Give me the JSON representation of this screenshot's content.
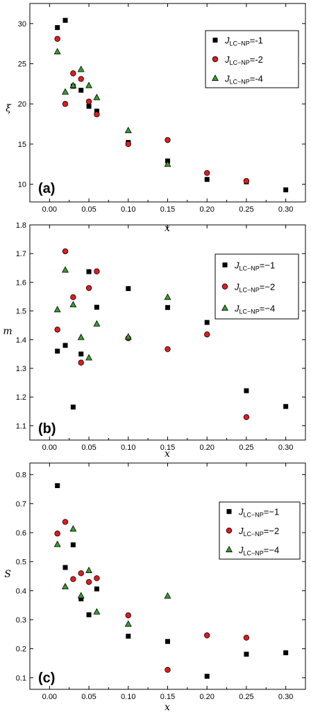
{
  "panels": [
    {
      "panel_label": "(a)",
      "chart_data": {
        "type": "scatter",
        "xlabel": "x",
        "ylabel": "ξ",
        "xlim": [
          -0.025,
          0.325
        ],
        "ylim": [
          7.8,
          32.5
        ],
        "xticks": [
          "0.00",
          "0.05",
          "0.10",
          "0.15",
          "0.20",
          "0.25",
          "0.30"
        ],
        "yticks": [
          "10",
          "15",
          "20",
          "25",
          "30"
        ],
        "legend_position": "top-right",
        "series": [
          {
            "legend": {
              "J": "J",
              "sub": "LC−NP",
              "eq": "=-1"
            },
            "marker": "square",
            "color": "#000000",
            "points": [
              [
                0.01,
                29.5
              ],
              [
                0.02,
                30.4
              ],
              [
                0.03,
                22.2
              ],
              [
                0.04,
                21.7
              ],
              [
                0.05,
                19.7
              ],
              [
                0.06,
                19.1
              ],
              [
                0.1,
                15.2
              ],
              [
                0.15,
                12.9
              ],
              [
                0.2,
                10.6
              ],
              [
                0.25,
                10.3
              ],
              [
                0.3,
                9.3
              ]
            ]
          },
          {
            "legend": {
              "J": "J",
              "sub": "LC−NP",
              "eq": "=-2"
            },
            "marker": "circle",
            "color": "#e31a1c",
            "points": [
              [
                0.01,
                28.1
              ],
              [
                0.02,
                20.0
              ],
              [
                0.03,
                23.8
              ],
              [
                0.04,
                23.1
              ],
              [
                0.05,
                20.3
              ],
              [
                0.06,
                18.7
              ],
              [
                0.1,
                15.0
              ],
              [
                0.15,
                15.5
              ],
              [
                0.2,
                11.4
              ],
              [
                0.25,
                10.4
              ]
            ]
          },
          {
            "legend": {
              "J": "J",
              "sub": "LC−NP",
              "eq": "=-4"
            },
            "marker": "triangle",
            "color": "#33a02c",
            "points": [
              [
                0.01,
                26.5
              ],
              [
                0.02,
                21.5
              ],
              [
                0.03,
                22.3
              ],
              [
                0.04,
                24.3
              ],
              [
                0.05,
                22.3
              ],
              [
                0.06,
                20.8
              ],
              [
                0.1,
                16.7
              ],
              [
                0.15,
                12.5
              ]
            ]
          }
        ]
      }
    },
    {
      "panel_label": "(b)",
      "chart_data": {
        "type": "scatter",
        "xlabel": "x",
        "ylabel": "m",
        "xlim": [
          -0.025,
          0.325
        ],
        "ylim": [
          1.05,
          1.8
        ],
        "xticks": [
          "0.00",
          "0.05",
          "0.10",
          "0.15",
          "0.20",
          "0.25",
          "0.30"
        ],
        "yticks": [
          "1.1",
          "1.2",
          "1.3",
          "1.4",
          "1.5",
          "1.6",
          "1.7",
          "1.8"
        ],
        "legend_position": "top-right",
        "series": [
          {
            "legend": {
              "J": "J",
              "sub": "LC−NP",
              "eq": "=−1"
            },
            "marker": "square",
            "color": "#000000",
            "points": [
              [
                0.01,
                1.36
              ],
              [
                0.02,
                1.38
              ],
              [
                0.03,
                1.165
              ],
              [
                0.04,
                1.35
              ],
              [
                0.05,
                1.637
              ],
              [
                0.06,
                1.513
              ],
              [
                0.1,
                1.578
              ],
              [
                0.15,
                1.512
              ],
              [
                0.2,
                1.46
              ],
              [
                0.25,
                1.222
              ],
              [
                0.3,
                1.167
              ]
            ]
          },
          {
            "legend": {
              "J": "J",
              "sub": "LC−NP",
              "eq": "=−2"
            },
            "marker": "circle",
            "color": "#e31a1c",
            "points": [
              [
                0.01,
                1.435
              ],
              [
                0.02,
                1.708
              ],
              [
                0.03,
                1.548
              ],
              [
                0.04,
                1.32
              ],
              [
                0.05,
                1.58
              ],
              [
                0.06,
                1.638
              ],
              [
                0.1,
                1.405
              ],
              [
                0.15,
                1.367
              ],
              [
                0.2,
                1.418
              ],
              [
                0.25,
                1.13
              ]
            ]
          },
          {
            "legend": {
              "J": "J",
              "sub": "LC−NP",
              "eq": "=−4"
            },
            "marker": "triangle",
            "color": "#33a02c",
            "points": [
              [
                0.01,
                1.505
              ],
              [
                0.02,
                1.643
              ],
              [
                0.03,
                1.522
              ],
              [
                0.04,
                1.408
              ],
              [
                0.05,
                1.337
              ],
              [
                0.06,
                1.455
              ],
              [
                0.1,
                1.41
              ],
              [
                0.15,
                1.548
              ]
            ]
          }
        ]
      }
    },
    {
      "panel_label": "(c)",
      "chart_data": {
        "type": "scatter",
        "xlabel": "x",
        "ylabel": "S",
        "xlim": [
          -0.025,
          0.325
        ],
        "ylim": [
          0.06,
          0.84
        ],
        "xticks": [
          "0.00",
          "0.05",
          "0.10",
          "0.15",
          "0.20",
          "0.25",
          "0.30"
        ],
        "yticks": [
          "0.1",
          "0.2",
          "0.3",
          "0.4",
          "0.5",
          "0.6",
          "0.7",
          "0.8"
        ],
        "legend_position": "top-right",
        "series": [
          {
            "legend": {
              "J": "J",
              "sub": "LC−NP",
              "eq": "=−1"
            },
            "marker": "square",
            "color": "#000000",
            "points": [
              [
                0.01,
                0.762
              ],
              [
                0.02,
                0.48
              ],
              [
                0.03,
                0.558
              ],
              [
                0.04,
                0.372
              ],
              [
                0.05,
                0.317
              ],
              [
                0.06,
                0.406
              ],
              [
                0.1,
                0.243
              ],
              [
                0.15,
                0.225
              ],
              [
                0.2,
                0.105
              ],
              [
                0.25,
                0.181
              ],
              [
                0.3,
                0.186
              ]
            ]
          },
          {
            "legend": {
              "J": "J",
              "sub": "LC−NP",
              "eq": "=−2"
            },
            "marker": "circle",
            "color": "#e31a1c",
            "points": [
              [
                0.01,
                0.597
              ],
              [
                0.02,
                0.637
              ],
              [
                0.03,
                0.44
              ],
              [
                0.04,
                0.46
              ],
              [
                0.05,
                0.43
              ],
              [
                0.06,
                0.443
              ],
              [
                0.1,
                0.315
              ],
              [
                0.15,
                0.127
              ],
              [
                0.2,
                0.246
              ],
              [
                0.25,
                0.238
              ]
            ]
          },
          {
            "legend": {
              "J": "J",
              "sub": "LC−NP",
              "eq": "=−4"
            },
            "marker": "triangle",
            "color": "#33a02c",
            "points": [
              [
                0.01,
                0.56
              ],
              [
                0.02,
                0.414
              ],
              [
                0.03,
                0.613
              ],
              [
                0.04,
                0.383
              ],
              [
                0.05,
                0.47
              ],
              [
                0.06,
                0.327
              ],
              [
                0.1,
                0.285
              ],
              [
                0.15,
                0.382
              ]
            ]
          }
        ]
      }
    }
  ]
}
